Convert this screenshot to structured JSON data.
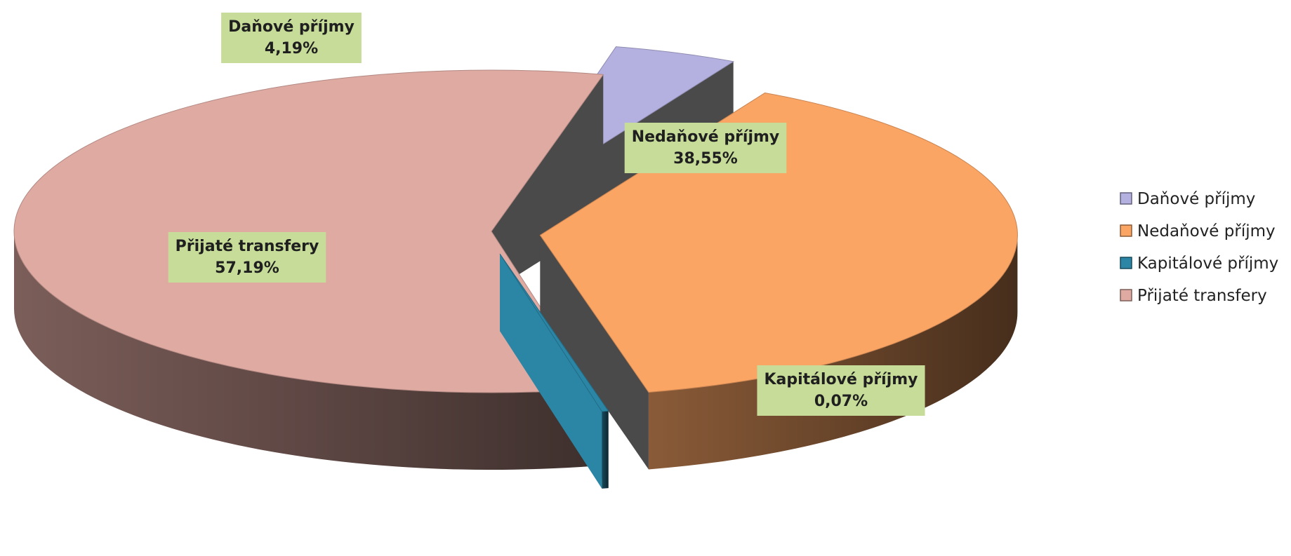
{
  "chart_data": {
    "type": "pie",
    "three_d": true,
    "exploded": true,
    "legend_position": "right",
    "slices": [
      {
        "name": "Daňové příjmy",
        "value": 4.19,
        "value_label": "4,19%",
        "color": "#b4b0df"
      },
      {
        "name": "Nedaňové příjmy",
        "value": 38.55,
        "value_label": "38,55%",
        "color": "#fba565"
      },
      {
        "name": "Kapitálové příjmy",
        "value": 0.07,
        "value_label": "0,07%",
        "color": "#2b86a6"
      },
      {
        "name": "Přijaté transfery",
        "value": 57.19,
        "value_label": "57,19%",
        "color": "#dfaaa2"
      }
    ],
    "data_label_background": "#c6dc98"
  }
}
